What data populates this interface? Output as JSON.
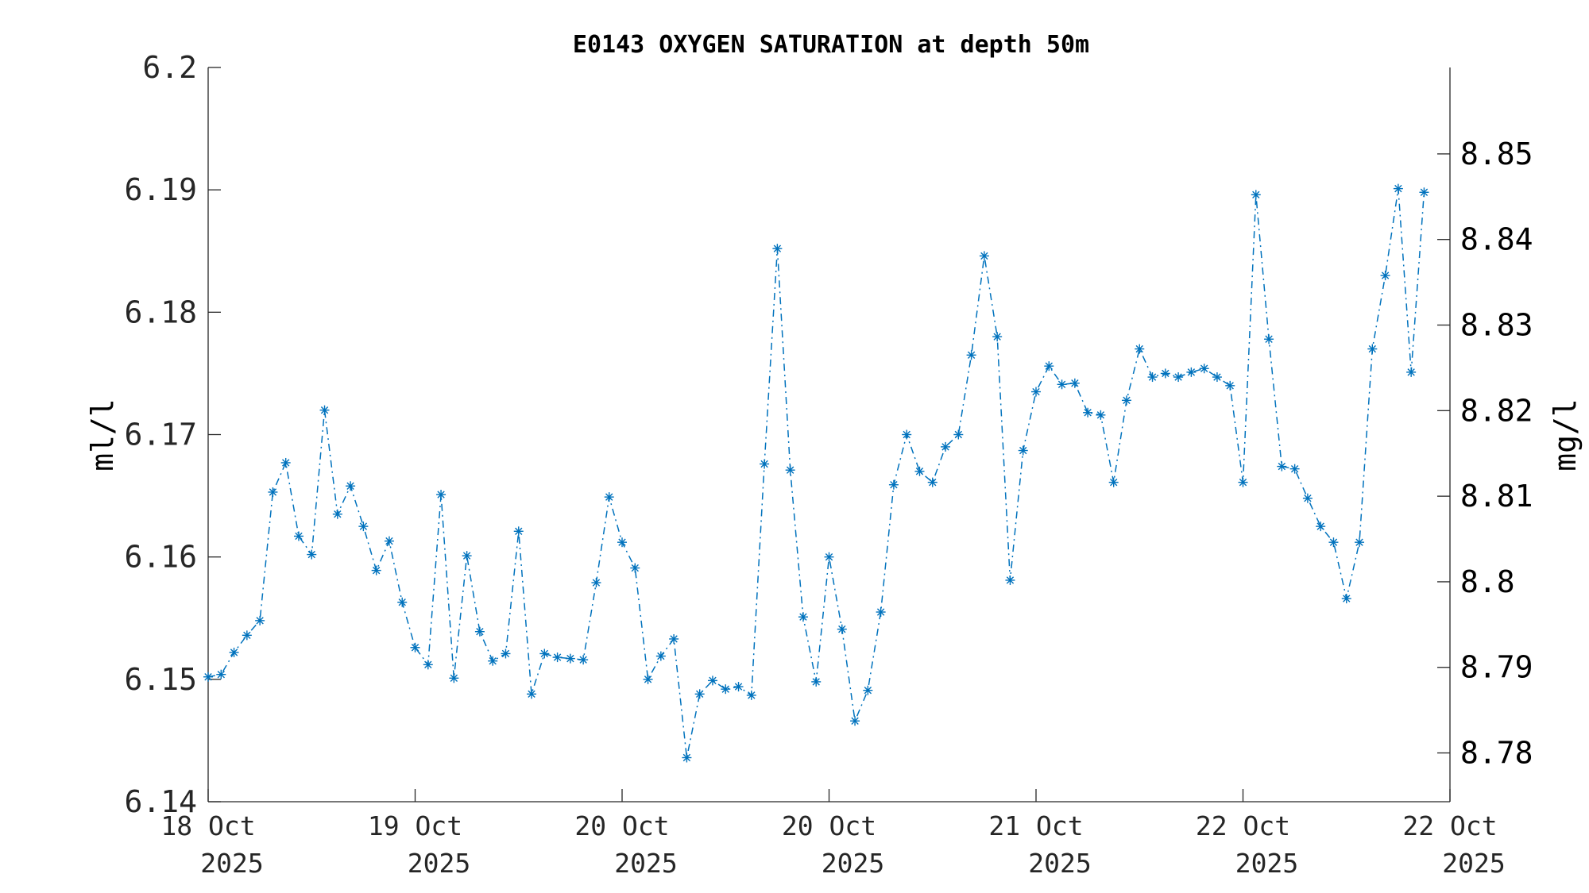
{
  "chart_data": {
    "type": "line",
    "title": "E0143 OXYGEN SATURATION at depth 50m",
    "ylabel": "ml/l",
    "ylabel_right": "mg/l",
    "ylim": [
      6.14,
      6.2
    ],
    "ylim_right": [
      8.7743,
      8.8601
    ],
    "yticks": [
      "6.14",
      "6.15",
      "6.16",
      "6.17",
      "6.18",
      "6.19",
      "6.2"
    ],
    "yticks_right": [
      "8.78",
      "8.79",
      "8.8",
      "8.81",
      "8.82",
      "8.83",
      "8.84",
      "8.85"
    ],
    "xlim": [
      0,
      96
    ],
    "xticks": [
      {
        "day": "18 Oct",
        "year": "2025"
      },
      {
        "day": "19 Oct",
        "year": "2025"
      },
      {
        "day": "20 Oct",
        "year": "2025"
      },
      {
        "day": "20 Oct",
        "year": "2025"
      },
      {
        "day": "21 Oct",
        "year": "2025"
      },
      {
        "day": "22 Oct",
        "year": "2025"
      },
      {
        "day": "22 Oct",
        "year": "2025"
      }
    ],
    "grid": false,
    "marker": "asterisk",
    "line_style": "dash-dot",
    "color": "#0072BD",
    "series": [
      {
        "name": "",
        "values": [
          6.1502,
          6.1504,
          6.1522,
          6.1536,
          6.1548,
          6.1653,
          6.1677,
          6.1617,
          6.1602,
          6.172,
          6.1635,
          6.1658,
          6.1625,
          6.1589,
          6.1613,
          6.1563,
          6.1526,
          6.1512,
          6.1651,
          6.1501,
          6.1601,
          6.1539,
          6.1515,
          6.1521,
          6.1621,
          6.1488,
          6.1521,
          6.1518,
          6.1517,
          6.1516,
          6.1579,
          6.1649,
          6.1612,
          6.1591,
          6.15,
          6.1519,
          6.1533,
          6.1436,
          6.1488,
          6.1499,
          6.1492,
          6.1494,
          6.1487,
          6.1676,
          6.1852,
          6.1671,
          6.1551,
          6.1498,
          6.16,
          6.1541,
          6.1466,
          6.1491,
          6.1555,
          6.1659,
          6.17,
          6.167,
          6.1661,
          6.169,
          6.17,
          6.1765,
          6.1846,
          6.178,
          6.1581,
          6.1687,
          6.1735,
          6.1756,
          6.1741,
          6.1742,
          6.1718,
          6.1716,
          6.1661,
          6.1728,
          6.177,
          6.1747,
          6.175,
          6.1747,
          6.1751,
          6.1754,
          6.1747,
          6.174,
          6.1661,
          6.1896,
          6.1778,
          6.1674,
          6.1672,
          6.1648,
          6.1625,
          6.1612,
          6.1566,
          6.1612,
          6.177,
          6.183,
          6.1901,
          6.1751,
          6.1898
        ]
      }
    ]
  }
}
